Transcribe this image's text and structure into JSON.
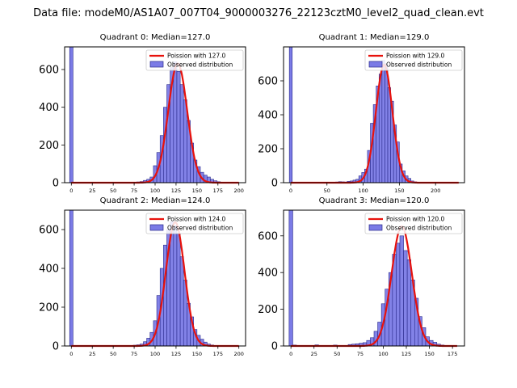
{
  "figure": {
    "title": "Data file: modeM0/AS1A07_007T04_9000003276_22123cztM0_level2_quad_clean.evt"
  },
  "colors": {
    "bar_fill": "#7b7be6",
    "bar_edge": "#2a2a8c",
    "curve": "#e8120c",
    "axis": "#000000"
  },
  "chart_data": [
    {
      "type": "bar",
      "title": "Quadrant 0: Median=127.0",
      "median": 127.0,
      "xlim": [
        -8,
        208
      ],
      "ylim": [
        0,
        720
      ],
      "xticks": [
        0,
        25,
        50,
        75,
        100,
        125,
        150,
        175,
        200
      ],
      "yticks": [
        0,
        200,
        400,
        600
      ],
      "bin_width": 4,
      "legend": [
        "Poission with 127.0",
        "Observed distribution"
      ],
      "spike": {
        "x": 0,
        "value": 720
      },
      "bin_centers": [
        80,
        84,
        88,
        92,
        96,
        100,
        104,
        108,
        112,
        116,
        120,
        124,
        128,
        132,
        136,
        140,
        144,
        148,
        152,
        156,
        160,
        164,
        168,
        172,
        176
      ],
      "counts": [
        4,
        6,
        12,
        18,
        30,
        90,
        160,
        250,
        400,
        520,
        610,
        640,
        590,
        520,
        440,
        330,
        210,
        120,
        85,
        55,
        40,
        30,
        18,
        10,
        5
      ],
      "poisson": {
        "mean": 127.0,
        "scale": 632
      }
    },
    {
      "type": "bar",
      "title": "Quadrant 1: Median=129.0",
      "median": 129.0,
      "xlim": [
        -10,
        240
      ],
      "ylim": [
        0,
        800
      ],
      "xticks": [
        0,
        50,
        100,
        150,
        200
      ],
      "yticks": [
        0,
        200,
        400,
        600
      ],
      "bin_width": 4,
      "legend": [
        "Poission with 129.0",
        "Observed distribution"
      ],
      "spike": {
        "x": 0,
        "value": 800
      },
      "bin_centers": [
        60,
        64,
        68,
        72,
        76,
        80,
        84,
        88,
        92,
        96,
        100,
        104,
        108,
        112,
        116,
        120,
        124,
        128,
        132,
        136,
        140,
        144,
        148,
        152,
        156,
        160,
        164,
        168,
        172
      ],
      "counts": [
        3,
        4,
        6,
        5,
        4,
        8,
        10,
        15,
        20,
        40,
        60,
        80,
        190,
        350,
        460,
        570,
        640,
        720,
        700,
        560,
        480,
        340,
        240,
        110,
        70,
        40,
        25,
        10,
        5
      ],
      "poisson": {
        "mean": 129.0,
        "scale": 695
      }
    },
    {
      "type": "bar",
      "title": "Quadrant 2: Median=124.0",
      "median": 124.0,
      "xlim": [
        -8,
        208
      ],
      "ylim": [
        0,
        700
      ],
      "xticks": [
        0,
        25,
        50,
        75,
        100,
        125,
        150,
        175,
        200
      ],
      "yticks": [
        0,
        200,
        400,
        600
      ],
      "bin_width": 4,
      "legend": [
        "Poission with 124.0",
        "Observed distribution"
      ],
      "spike": {
        "x": 0,
        "value": 700
      },
      "bin_centers": [
        76,
        80,
        84,
        88,
        92,
        96,
        100,
        104,
        108,
        112,
        116,
        120,
        124,
        128,
        132,
        136,
        140,
        144,
        148,
        152,
        156,
        160,
        164,
        168
      ],
      "counts": [
        4,
        6,
        10,
        22,
        40,
        70,
        130,
        260,
        400,
        520,
        600,
        640,
        620,
        580,
        460,
        340,
        220,
        150,
        85,
        55,
        35,
        20,
        10,
        5
      ],
      "poisson": {
        "mean": 124.0,
        "scale": 638
      }
    },
    {
      "type": "bar",
      "title": "Quadrant 3: Median=120.0",
      "median": 120.0,
      "xlim": [
        -8,
        188
      ],
      "ylim": [
        0,
        740
      ],
      "xticks": [
        0,
        25,
        50,
        75,
        100,
        125,
        150,
        175
      ],
      "yticks": [
        0,
        200,
        400,
        600
      ],
      "bin_width": 4,
      "legend": [
        "Poission with 120.0",
        "Observed distribution"
      ],
      "spike": {
        "x": 0,
        "value": 740
      },
      "bin_centers": [
        4,
        28,
        48,
        64,
        68,
        72,
        76,
        80,
        84,
        88,
        92,
        96,
        100,
        104,
        108,
        112,
        116,
        120,
        124,
        128,
        132,
        136,
        140,
        144,
        148,
        152,
        156,
        160,
        164
      ],
      "counts": [
        5,
        6,
        5,
        8,
        10,
        12,
        15,
        18,
        30,
        45,
        80,
        130,
        230,
        310,
        400,
        500,
        560,
        600,
        520,
        470,
        360,
        260,
        160,
        100,
        50,
        30,
        20,
        10,
        5
      ],
      "poisson": {
        "mean": 120.0,
        "scale": 652
      }
    }
  ]
}
